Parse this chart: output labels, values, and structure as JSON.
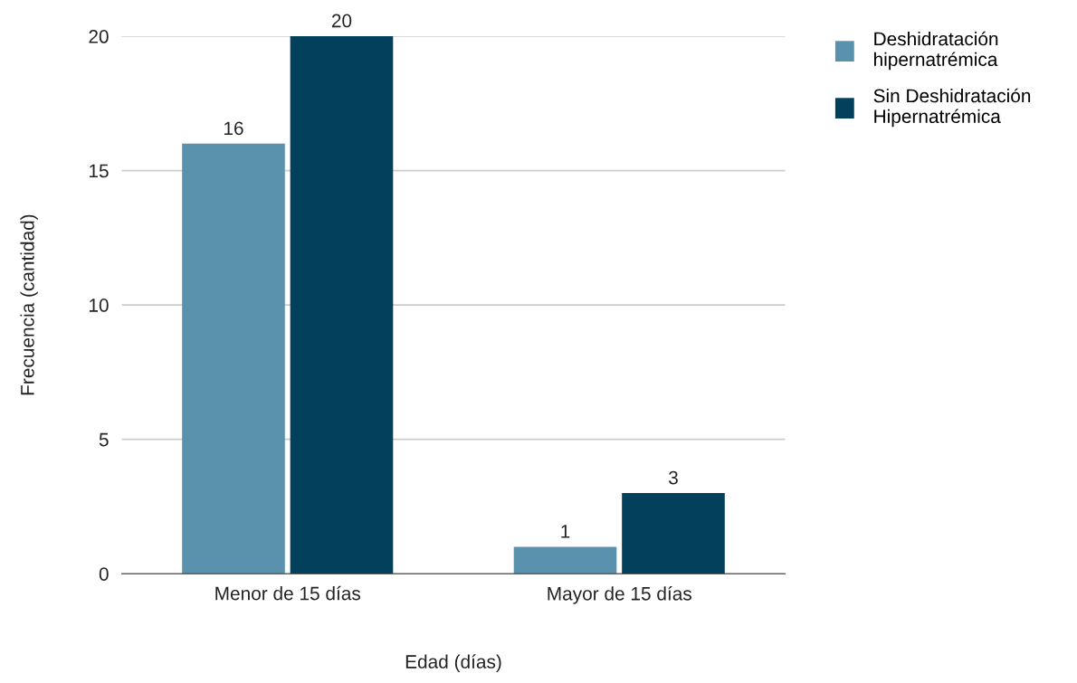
{
  "chart_data": {
    "type": "bar",
    "xlabel": "Edad (días)",
    "ylabel": "Frecuencia (cantidad)",
    "categories": [
      "Menor de 15 días",
      "Mayor de 15 días"
    ],
    "series": [
      {
        "name": "Deshidratación\nhipernatrémica",
        "color": "#5a92ad",
        "values": [
          16,
          1
        ]
      },
      {
        "name": "Sin Deshidratación\nHipernatrémica",
        "color": "#03405c",
        "values": [
          20,
          3
        ]
      }
    ],
    "ylim": [
      0,
      20
    ],
    "yticks": [
      0,
      5,
      10,
      15,
      20
    ],
    "grid": "y",
    "legend": "top right",
    "data_labels": true
  }
}
